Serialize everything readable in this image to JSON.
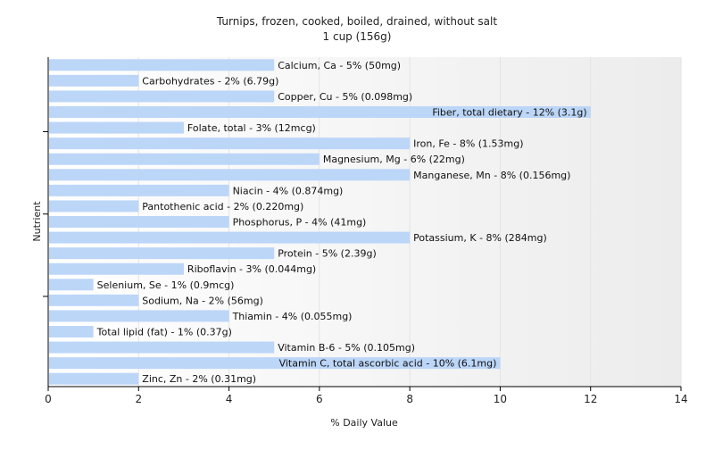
{
  "chart_data": {
    "type": "bar",
    "orientation": "horizontal",
    "title": "Turnips, frozen, cooked, boiled, drained, without salt",
    "subtitle": "1 cup (156g)",
    "xlabel": "% Daily Value",
    "ylabel": "Nutrient",
    "xlim": [
      0,
      14
    ],
    "xticks": [
      0,
      2,
      4,
      6,
      8,
      10,
      12,
      14
    ],
    "grid": "vertical",
    "colors": {
      "bar": "#bcd6f8",
      "grid": "#e3e3e3",
      "axis": "#000000",
      "background_band": "#f4f4f4"
    },
    "categories": [
      "Calcium, Ca",
      "Carbohydrates",
      "Copper, Cu",
      "Fiber, total dietary",
      "Folate, total",
      "Iron, Fe",
      "Magnesium, Mg",
      "Manganese, Mn",
      "Niacin",
      "Pantothenic acid",
      "Phosphorus, P",
      "Potassium, K",
      "Protein",
      "Riboflavin",
      "Selenium, Se",
      "Sodium, Na",
      "Thiamin",
      "Total lipid (fat)",
      "Vitamin B-6",
      "Vitamin C, total ascorbic acid",
      "Zinc, Zn"
    ],
    "values": [
      5,
      2,
      5,
      12,
      3,
      8,
      6,
      8,
      4,
      2,
      4,
      8,
      5,
      3,
      1,
      2,
      4,
      1,
      5,
      10,
      2
    ],
    "labels": [
      "Calcium, Ca - 5% (50mg)",
      "Carbohydrates - 2% (6.79g)",
      "Copper, Cu - 5% (0.098mg)",
      "Fiber, total dietary - 12% (3.1g)",
      "Folate, total - 3% (12mcg)",
      "Iron, Fe - 8% (1.53mg)",
      "Magnesium, Mg - 6% (22mg)",
      "Manganese, Mn - 8% (0.156mg)",
      "Niacin - 4% (0.874mg)",
      "Pantothenic acid - 2% (0.220mg)",
      "Phosphorus, P - 4% (41mg)",
      "Potassium, K - 8% (284mg)",
      "Protein - 5% (2.39g)",
      "Riboflavin - 3% (0.044mg)",
      "Selenium, Se - 1% (0.9mcg)",
      "Sodium, Na - 2% (56mg)",
      "Thiamin - 4% (0.055mg)",
      "Total lipid (fat) - 1% (0.37g)",
      "Vitamin B-6 - 5% (0.105mg)",
      "Vitamin C, total ascorbic acid - 10% (6.1mg)",
      "Zinc, Zn - 2% (0.31mg)"
    ]
  }
}
